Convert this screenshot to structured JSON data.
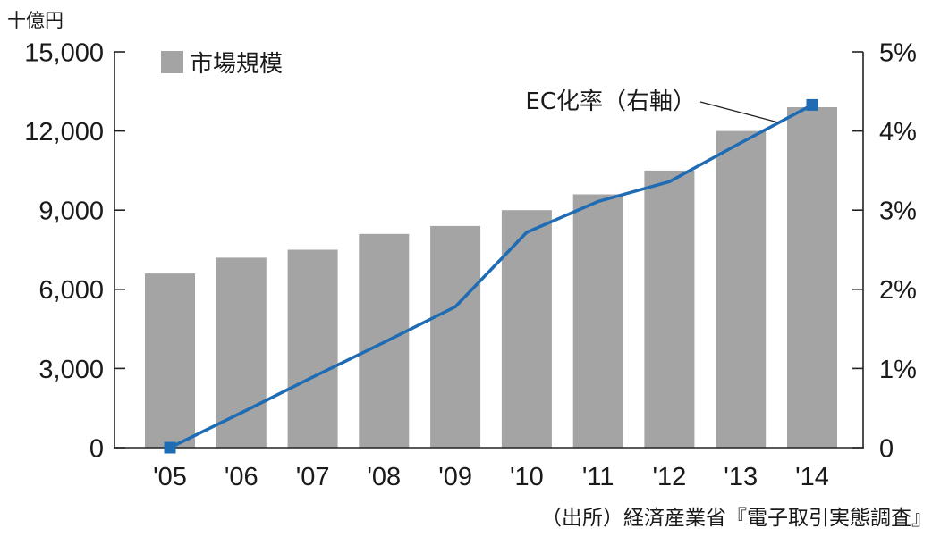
{
  "chart_data": {
    "type": "bar",
    "unit_label": "十億円",
    "categories": [
      "'05",
      "'06",
      "'07",
      "'08",
      "'09",
      "'10",
      "'11",
      "'12",
      "'13",
      "'14"
    ],
    "series": [
      {
        "name": "市場規模",
        "type": "bar",
        "axis": "left",
        "color": "#a4a4a4",
        "values": [
          6600,
          7200,
          7500,
          8100,
          8400,
          9000,
          9600,
          10500,
          12000,
          12900
        ]
      },
      {
        "name": "EC化率（右軸）",
        "type": "line",
        "axis": "right",
        "color": "#1f6cb4",
        "values": [
          0,
          0.44,
          0.89,
          1.33,
          1.78,
          2.72,
          3.11,
          3.36,
          3.85,
          4.33
        ],
        "marker": "square",
        "marker_indices": [
          0,
          9
        ]
      }
    ],
    "left_axis": {
      "ylim": [
        0,
        15000
      ],
      "ticks": [
        0,
        3000,
        6000,
        9000,
        12000,
        15000
      ],
      "tick_labels": [
        "0",
        "3,000",
        "6,000",
        "9,000",
        "12,000",
        "15,000"
      ]
    },
    "right_axis": {
      "ylim": [
        0,
        5
      ],
      "ticks": [
        0,
        1,
        2,
        3,
        4,
        5
      ],
      "tick_labels": [
        "0",
        "1%",
        "2%",
        "3%",
        "4%",
        "5%"
      ]
    },
    "legend": "top-left",
    "grid": false,
    "source": "（出所）経済産業省『電子取引実態調査』"
  }
}
